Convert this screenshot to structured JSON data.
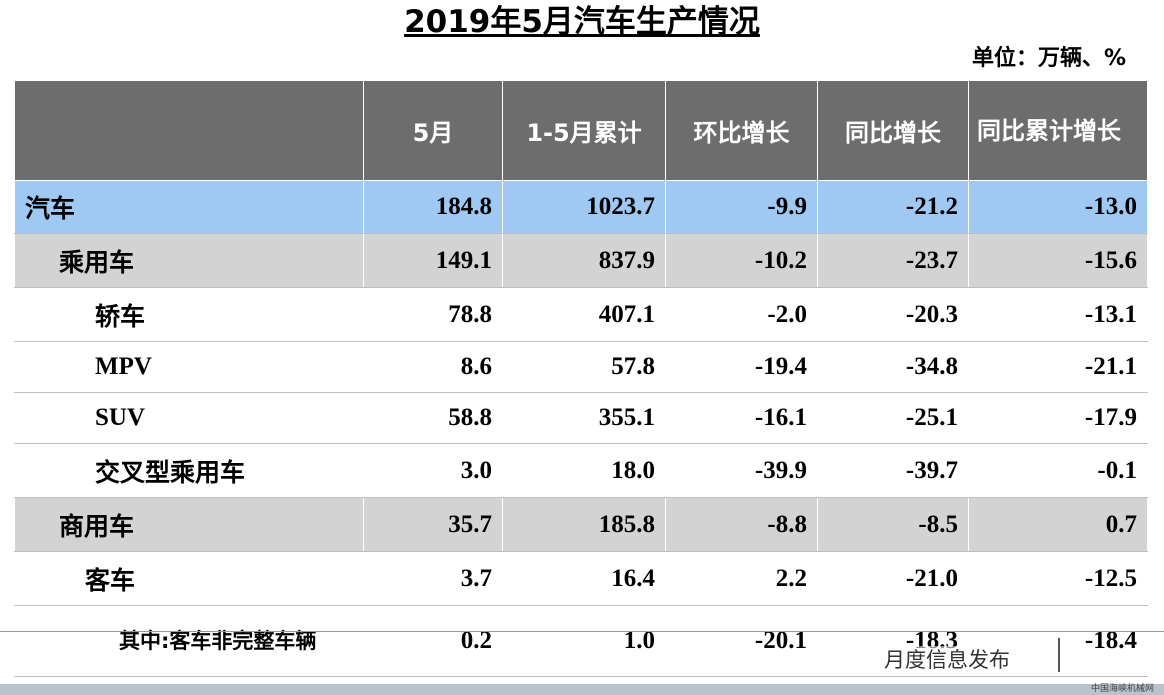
{
  "title": "2019年5月汽车生产情况",
  "unit": "单位：万辆、%",
  "table": {
    "headers": [
      "",
      "5月",
      "1-5月累计",
      "环比增长",
      "同比增长",
      "同比累计增长"
    ],
    "rows": [
      {
        "label": "汽车",
        "values": [
          "184.8",
          "1023.7",
          "-9.9",
          "-21.2",
          "-13.0"
        ]
      },
      {
        "label": "乘用车",
        "values": [
          "149.1",
          "837.9",
          "-10.2",
          "-23.7",
          "-15.6"
        ]
      },
      {
        "label": "轿车",
        "values": [
          "78.8",
          "407.1",
          "-2.0",
          "-20.3",
          "-13.1"
        ]
      },
      {
        "label": "MPV",
        "values": [
          "8.6",
          "57.8",
          "-19.4",
          "-34.8",
          "-21.1"
        ]
      },
      {
        "label": "SUV",
        "values": [
          "58.8",
          "355.1",
          "-16.1",
          "-25.1",
          "-17.9"
        ]
      },
      {
        "label": "交叉型乘用车",
        "values": [
          "3.0",
          "18.0",
          "-39.9",
          "-39.7",
          "-0.1"
        ]
      },
      {
        "label": "商用车",
        "values": [
          "35.7",
          "185.8",
          "-8.8",
          "-8.5",
          "0.7"
        ]
      },
      {
        "label": "客车",
        "values": [
          "3.7",
          "16.4",
          "2.2",
          "-21.0",
          "-12.5"
        ]
      },
      {
        "label": "其中:客车非完整车辆",
        "values": [
          "0.2",
          "1.0",
          "-20.1",
          "-18.3",
          "-18.4"
        ]
      }
    ]
  },
  "overlay": {
    "text": "月度信息发布"
  },
  "watermark": "中国海峡机械网",
  "colors": {
    "header": "#6d6d6d",
    "highlight": "#9fc8f2",
    "group": "#d3d3d3"
  }
}
